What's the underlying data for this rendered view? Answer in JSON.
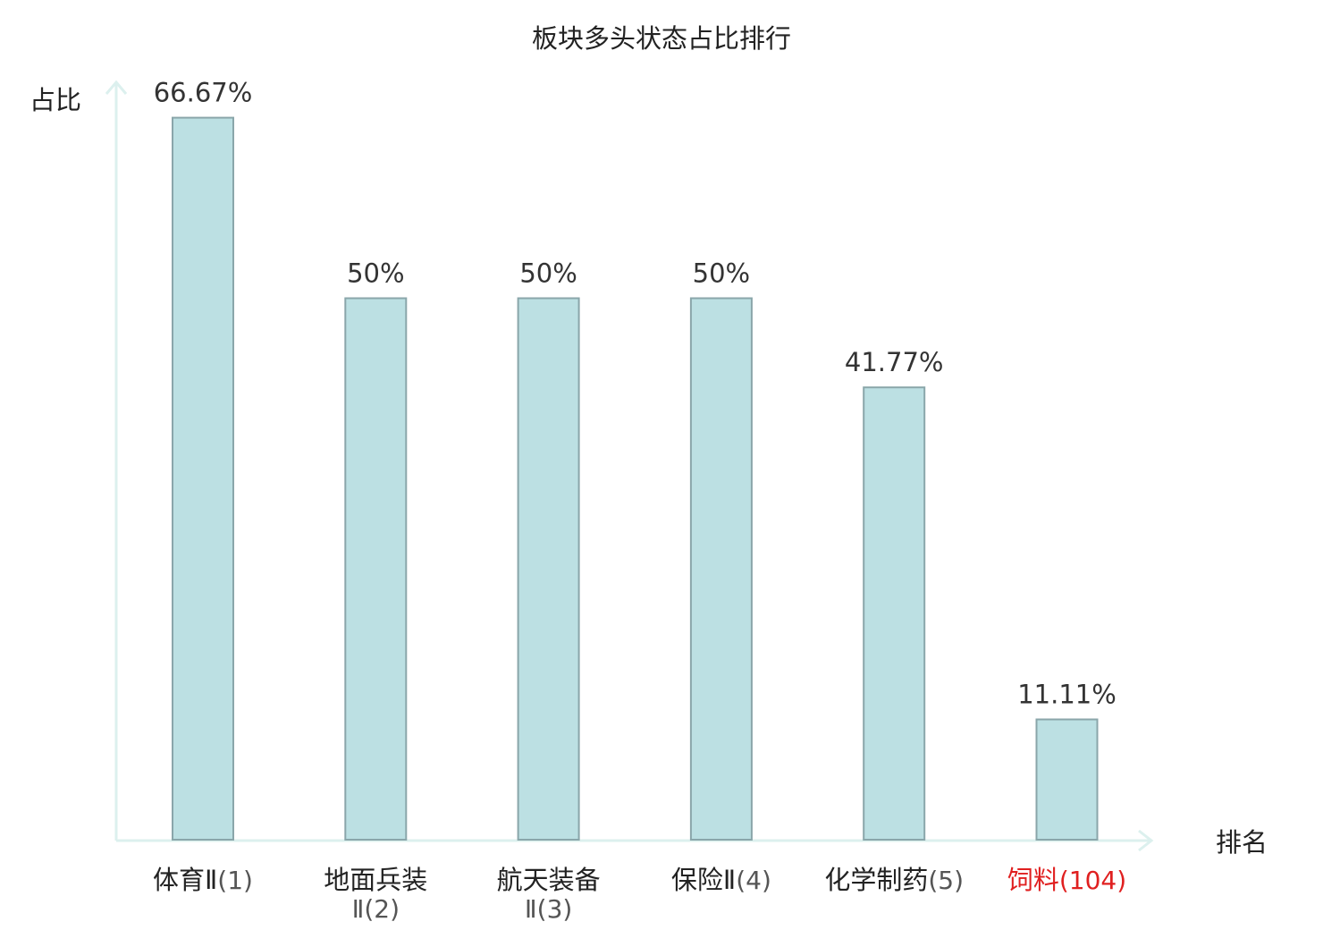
{
  "chart_data": {
    "type": "bar",
    "title": "板块多头状态占比排行",
    "ylabel": "占比",
    "xlabel": "排名",
    "ylim": [
      0,
      70
    ],
    "grid": false,
    "categories": [
      {
        "name": "体育Ⅱ",
        "rank": "(1)",
        "highlight": false
      },
      {
        "name": "地面兵装Ⅱ",
        "rank": "(2)",
        "highlight": false
      },
      {
        "name": "航天装备Ⅱ",
        "rank": "(3)",
        "highlight": false
      },
      {
        "name": "保险Ⅱ",
        "rank": "(4)",
        "highlight": false
      },
      {
        "name": "化学制药",
        "rank": "(5)",
        "highlight": false
      },
      {
        "name": "饲料",
        "rank": "(104)",
        "highlight": true
      }
    ],
    "values": [
      66.67,
      50,
      50,
      50,
      41.77,
      11.11
    ],
    "value_labels": [
      "66.67%",
      "50%",
      "50%",
      "50%",
      "41.77%",
      "11.11%"
    ]
  },
  "colors": {
    "bar_fill": "#bce0e3",
    "bar_stroke": "#8aa6aa",
    "axis": "#dcf0ee",
    "highlight_text": "#e02020",
    "rank_text": "#555555",
    "text": "#222222"
  }
}
